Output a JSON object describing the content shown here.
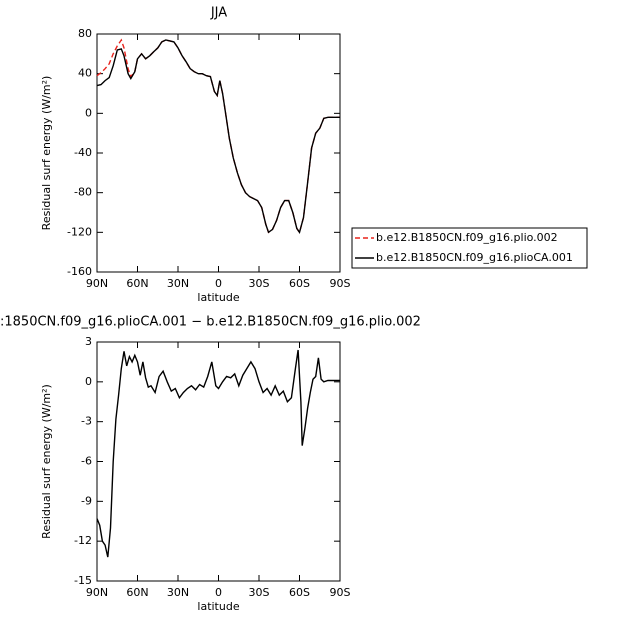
{
  "chart_data": [
    {
      "type": "line",
      "title": "JJA",
      "ylabel": "Residual surf energy (W/m²)",
      "xlabel": "latitude",
      "xlim": [
        90,
        -90
      ],
      "ylim": [
        -160,
        80
      ],
      "xticks": [
        {
          "value": 90,
          "label": "90N"
        },
        {
          "value": 60,
          "label": "60N"
        },
        {
          "value": 30,
          "label": "30N"
        },
        0,
        {
          "value": -30,
          "label": "30S"
        },
        {
          "value": -60,
          "label": "60S"
        },
        {
          "value": -90,
          "label": "90S"
        }
      ],
      "yticks": [
        -160,
        -120,
        -80,
        -40,
        0,
        40,
        80
      ],
      "legend": "right",
      "x": [
        90,
        87,
        84,
        81,
        78,
        75,
        72,
        70,
        67,
        65,
        62,
        60,
        57,
        54,
        51,
        48,
        45,
        42,
        39,
        36,
        33,
        30,
        27,
        24,
        21,
        18,
        15,
        12,
        9,
        6,
        3,
        1,
        -1,
        -3,
        -5,
        -8,
        -11,
        -14,
        -17,
        -20,
        -23,
        -26,
        -29,
        -32,
        -35,
        -37,
        -40,
        -43,
        -46,
        -49,
        -52,
        -55,
        -58,
        -60,
        -63,
        -66,
        -69,
        -72,
        -75,
        -78,
        -81,
        -84,
        -87,
        -90
      ],
      "series": [
        {
          "name": "b.e12.B1850CN.f09_g16.plio.002",
          "color": "#e8231c",
          "style": "dashed",
          "values": [
            38,
            41,
            45,
            50,
            60,
            68,
            74,
            66,
            45,
            37,
            42,
            55,
            60,
            55,
            58,
            62,
            66,
            72,
            74,
            73,
            72,
            66,
            58,
            52,
            45,
            42,
            40,
            40,
            38,
            37,
            22,
            18,
            33,
            20,
            2,
            -25,
            -45,
            -60,
            -72,
            -80,
            -84,
            -86,
            -88,
            -95,
            -112,
            -120,
            -117,
            -108,
            -95,
            -88,
            -88,
            -100,
            -116,
            -120,
            -105,
            -70,
            -35,
            -20,
            -15,
            -5,
            -4,
            -4,
            -4,
            -4
          ]
        },
        {
          "name": "b.e12.B1850CN.f09_g16.plioCA.001",
          "color": "#000000",
          "style": "solid",
          "values": [
            28,
            29,
            33,
            36,
            48,
            64,
            65,
            58,
            40,
            35,
            42,
            55,
            60,
            55,
            58,
            62,
            66,
            72,
            74,
            73,
            72,
            66,
            58,
            52,
            45,
            42,
            40,
            40,
            38,
            37,
            22,
            18,
            33,
            20,
            2,
            -25,
            -45,
            -60,
            -72,
            -80,
            -84,
            -86,
            -88,
            -95,
            -112,
            -120,
            -117,
            -108,
            -95,
            -88,
            -88,
            -100,
            -116,
            -120,
            -105,
            -70,
            -35,
            -20,
            -15,
            -5,
            -4,
            -4,
            -4,
            -4
          ]
        }
      ]
    },
    {
      "type": "line",
      "title": ":1850CN.f09_g16.plioCA.001 − b.e12.B1850CN.f09_g16.plio.002",
      "ylabel": "Residual surf energy (W/m²)",
      "xlabel": "latitude",
      "xlim": [
        90,
        -90
      ],
      "ylim": [
        -15,
        3
      ],
      "xticks": [
        {
          "value": 90,
          "label": "90N"
        },
        {
          "value": 60,
          "label": "60N"
        },
        {
          "value": 30,
          "label": "30N"
        },
        0,
        {
          "value": -30,
          "label": "30S"
        },
        {
          "value": -60,
          "label": "60S"
        },
        {
          "value": -90,
          "label": "90S"
        }
      ],
      "yticks": [
        -15,
        -12,
        -9,
        -6,
        -3,
        0,
        3
      ],
      "x": [
        90,
        88,
        86,
        84,
        82,
        80,
        78,
        76,
        74,
        72,
        70,
        68,
        66,
        64,
        62,
        60,
        58,
        56,
        54,
        52,
        50,
        47,
        44,
        41,
        38,
        35,
        32,
        29,
        26,
        23,
        20,
        17,
        14,
        11,
        8,
        5,
        2,
        0,
        -3,
        -6,
        -9,
        -12,
        -15,
        -18,
        -21,
        -24,
        -27,
        -30,
        -33,
        -36,
        -39,
        -42,
        -45,
        -48,
        -51,
        -54,
        -57,
        -59,
        -61,
        -62,
        -64,
        -66,
        -68,
        -70,
        -72,
        -74,
        -76,
        -78,
        -81,
        -84,
        -90
      ],
      "series": [
        {
          "color": "#000000",
          "style": "solid",
          "values": [
            -10.3,
            -10.8,
            -12,
            -12.3,
            -13.2,
            -11,
            -6,
            -2.8,
            -1,
            1,
            2.3,
            1.2,
            1.9,
            1.5,
            2,
            1.5,
            0.5,
            1.5,
            0.3,
            -0.4,
            -0.3,
            -0.8,
            0.4,
            0.8,
            0,
            -0.7,
            -0.5,
            -1.2,
            -0.8,
            -0.5,
            -0.3,
            -0.6,
            -0.2,
            -0.4,
            0.4,
            1.5,
            -0.3,
            -0.5,
            0,
            0.4,
            0.3,
            0.6,
            -0.3,
            0.5,
            1,
            1.5,
            1,
            0,
            -0.8,
            -0.5,
            -1,
            -0.3,
            -1,
            -0.7,
            -1.5,
            -1.2,
            1,
            2.4,
            -1.5,
            -4.8,
            -3.5,
            -2,
            -0.8,
            0.2,
            0.4,
            1.8,
            0.2,
            0,
            0.1,
            0.1,
            0.1
          ]
        }
      ]
    }
  ]
}
